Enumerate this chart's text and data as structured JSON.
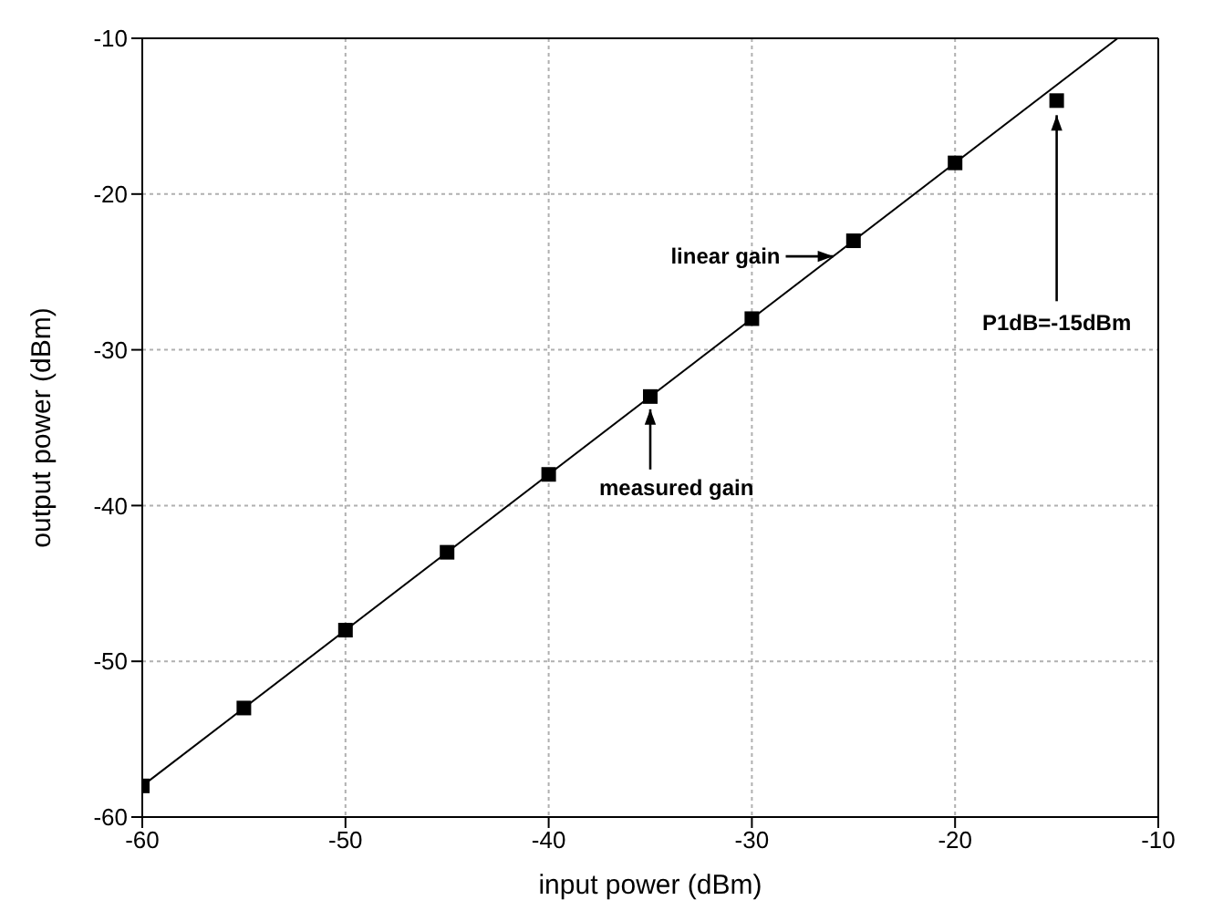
{
  "chart_data": {
    "type": "scatter",
    "xlabel": "input power (dBm)",
    "ylabel": "output power (dBm)",
    "xlim": [
      -60,
      -10
    ],
    "xticks": [
      -60,
      -50,
      -40,
      -30,
      -20,
      -10
    ],
    "ylim": [
      -60,
      -10
    ],
    "yticks": [
      -60,
      -50,
      -40,
      -30,
      -20,
      -10
    ],
    "grid": true,
    "legend": false,
    "series": [
      {
        "marker": "square",
        "color": "#000000",
        "x": [
          -60,
          -55,
          -50,
          -45,
          -40,
          -35,
          -30,
          -25,
          -20,
          -15
        ],
        "values": [
          -58,
          -53,
          -48,
          -43,
          -38,
          -33,
          -28,
          -23,
          -18,
          -14
        ]
      },
      {
        "type": "line",
        "marker": "none",
        "color": "#000000",
        "x": [
          -60,
          -12
        ],
        "values": [
          -58,
          -10
        ]
      }
    ],
    "annotations": [
      {
        "text": "linear gain",
        "x": -26,
        "y": -24
      },
      {
        "text": "measured gain",
        "x": -35,
        "y": -33
      },
      {
        "text": "P1dB=-15dBm",
        "x": -15,
        "y": -14
      }
    ]
  }
}
